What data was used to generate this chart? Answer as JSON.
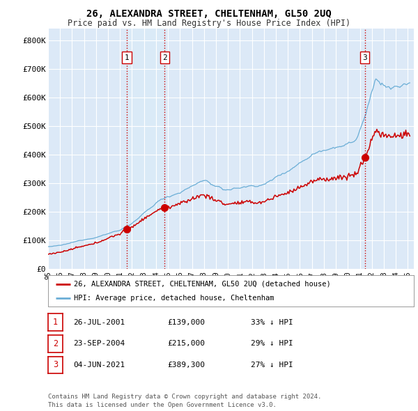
{
  "title": "26, ALEXANDRA STREET, CHELTENHAM, GL50 2UQ",
  "subtitle": "Price paid vs. HM Land Registry's House Price Index (HPI)",
  "title_fontsize": 10,
  "subtitle_fontsize": 8.5,
  "background_color": "#ffffff",
  "plot_bg_color": "#dce9f7",
  "ylabel_ticks": [
    "£0",
    "£100K",
    "£200K",
    "£300K",
    "£400K",
    "£500K",
    "£600K",
    "£700K",
    "£800K"
  ],
  "ytick_values": [
    0,
    100000,
    200000,
    300000,
    400000,
    500000,
    600000,
    700000,
    800000
  ],
  "ylim": [
    0,
    840000
  ],
  "xlim_start": 1995.0,
  "xlim_end": 2025.5,
  "hpi_color": "#6baed6",
  "price_color": "#cc0000",
  "vline_color": "#cc0000",
  "shade_color": "#d0e4f7",
  "grid_color": "#c8d8ea",
  "legend_label_price": "26, ALEXANDRA STREET, CHELTENHAM, GL50 2UQ (detached house)",
  "legend_label_hpi": "HPI: Average price, detached house, Cheltenham",
  "sale1_date": 2001.57,
  "sale1_price": 139000,
  "sale1_label": "1",
  "sale2_date": 2004.73,
  "sale2_price": 215000,
  "sale2_label": "2",
  "sale3_date": 2021.42,
  "sale3_price": 389300,
  "sale3_label": "3",
  "table_rows": [
    {
      "num": "1",
      "date": "26-JUL-2001",
      "price": "£139,000",
      "change": "33% ↓ HPI"
    },
    {
      "num": "2",
      "date": "23-SEP-2004",
      "price": "£215,000",
      "change": "29% ↓ HPI"
    },
    {
      "num": "3",
      "date": "04-JUN-2021",
      "price": "£389,300",
      "change": "27% ↓ HPI"
    }
  ],
  "footnote1": "Contains HM Land Registry data © Crown copyright and database right 2024.",
  "footnote2": "This data is licensed under the Open Government Licence v3.0.",
  "xtick_years": [
    1995,
    1996,
    1997,
    1998,
    1999,
    2000,
    2001,
    2002,
    2003,
    2004,
    2005,
    2006,
    2007,
    2008,
    2009,
    2010,
    2011,
    2012,
    2013,
    2014,
    2015,
    2016,
    2017,
    2018,
    2019,
    2020,
    2021,
    2022,
    2023,
    2024,
    2025
  ]
}
